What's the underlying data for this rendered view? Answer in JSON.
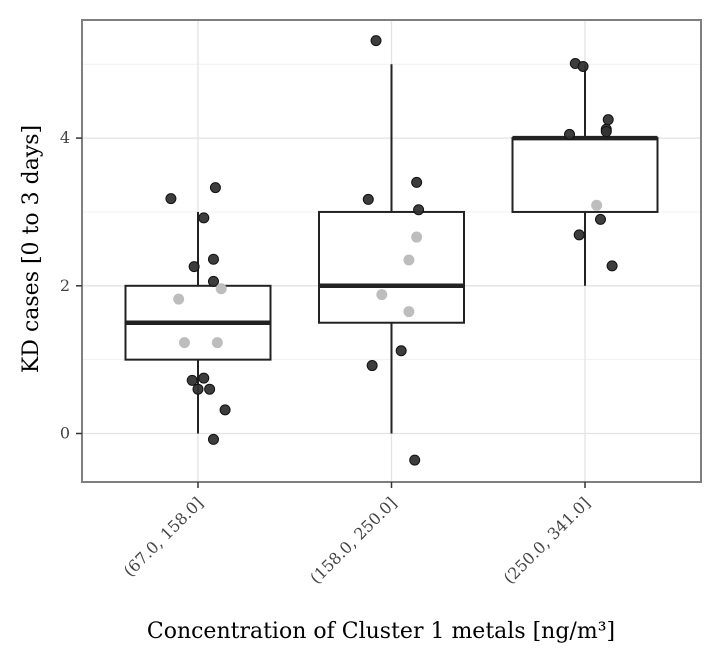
{
  "chart_data": {
    "type": "box",
    "title": "",
    "xlabel": "Concentration of Cluster 1 metals [ng/m³]",
    "ylabel": "KD cases [0 to 3 days]",
    "ylim": [
      -0.65,
      5.6
    ],
    "yticks": [
      0,
      2,
      4
    ],
    "grid": true,
    "legend": "none",
    "categories": [
      "(67.0, 158.0]",
      "(158.0, 250.0]",
      "(250.0, 341.0]"
    ],
    "boxes": [
      {
        "category": "(67.0, 158.0]",
        "whisker_low": 0,
        "q1": 1,
        "median": 1.5,
        "q3": 2,
        "whisker_high": 3
      },
      {
        "category": "(158.0, 250.0]",
        "whisker_low": 0,
        "q1": 1.5,
        "median": 2,
        "q3": 3,
        "whisker_high": 5
      },
      {
        "category": "(250.0, 341.0]",
        "whisker_low": 2,
        "q1": 3,
        "median": 4,
        "q3": 4,
        "whisker_high": 5
      }
    ],
    "points": [
      {
        "category": "(67.0, 158.0]",
        "points": [
          {
            "jitter": -0.14,
            "y": 3.18,
            "shade": "dark"
          },
          {
            "jitter": 0.09,
            "y": 3.33,
            "shade": "dark"
          },
          {
            "jitter": 0.03,
            "y": 2.92,
            "shade": "dark"
          },
          {
            "jitter": -0.02,
            "y": 2.26,
            "shade": "dark"
          },
          {
            "jitter": 0.08,
            "y": 2.36,
            "shade": "dark"
          },
          {
            "jitter": 0.08,
            "y": 2.06,
            "shade": "dark"
          },
          {
            "jitter": 0.12,
            "y": 1.96,
            "shade": "light"
          },
          {
            "jitter": -0.1,
            "y": 1.82,
            "shade": "light"
          },
          {
            "jitter": -0.07,
            "y": 1.23,
            "shade": "light"
          },
          {
            "jitter": 0.1,
            "y": 1.23,
            "shade": "light"
          },
          {
            "jitter": -0.03,
            "y": 0.72,
            "shade": "dark"
          },
          {
            "jitter": 0.03,
            "y": 0.75,
            "shade": "dark"
          },
          {
            "jitter": 0.0,
            "y": 0.6,
            "shade": "dark"
          },
          {
            "jitter": 0.06,
            "y": 0.6,
            "shade": "dark"
          },
          {
            "jitter": 0.14,
            "y": 0.32,
            "shade": "dark"
          },
          {
            "jitter": 0.08,
            "y": -0.08,
            "shade": "dark"
          }
        ]
      },
      {
        "category": "(158.0, 250.0]",
        "points": [
          {
            "jitter": -0.08,
            "y": 5.32,
            "shade": "dark"
          },
          {
            "jitter": -0.12,
            "y": 3.17,
            "shade": "dark"
          },
          {
            "jitter": 0.13,
            "y": 3.4,
            "shade": "dark"
          },
          {
            "jitter": 0.14,
            "y": 3.03,
            "shade": "dark"
          },
          {
            "jitter": 0.13,
            "y": 2.66,
            "shade": "light"
          },
          {
            "jitter": 0.09,
            "y": 2.35,
            "shade": "light"
          },
          {
            "jitter": -0.05,
            "y": 1.88,
            "shade": "light"
          },
          {
            "jitter": 0.09,
            "y": 1.65,
            "shade": "light"
          },
          {
            "jitter": 0.05,
            "y": 1.12,
            "shade": "dark"
          },
          {
            "jitter": -0.1,
            "y": 0.92,
            "shade": "dark"
          },
          {
            "jitter": 0.12,
            "y": -0.36,
            "shade": "dark"
          }
        ]
      },
      {
        "category": "(250.0, 341.0]",
        "points": [
          {
            "jitter": -0.05,
            "y": 5.01,
            "shade": "dark"
          },
          {
            "jitter": -0.01,
            "y": 4.97,
            "shade": "dark"
          },
          {
            "jitter": 0.12,
            "y": 4.25,
            "shade": "dark"
          },
          {
            "jitter": 0.11,
            "y": 4.12,
            "shade": "dark"
          },
          {
            "jitter": 0.11,
            "y": 4.09,
            "shade": "dark"
          },
          {
            "jitter": -0.08,
            "y": 4.05,
            "shade": "dark"
          },
          {
            "jitter": 0.06,
            "y": 3.09,
            "shade": "light"
          },
          {
            "jitter": 0.08,
            "y": 2.9,
            "shade": "dark"
          },
          {
            "jitter": -0.03,
            "y": 2.69,
            "shade": "dark"
          },
          {
            "jitter": 0.14,
            "y": 2.27,
            "shade": "dark"
          }
        ]
      }
    ],
    "colors": {
      "background": "#ffffff",
      "grid_major": "#e3e3e3",
      "grid_minor": "#f1f1f1",
      "border": "#7f7f7f",
      "box_line": "#222222",
      "point_dark": "#333333",
      "point_light": "#bdbdbd"
    }
  }
}
